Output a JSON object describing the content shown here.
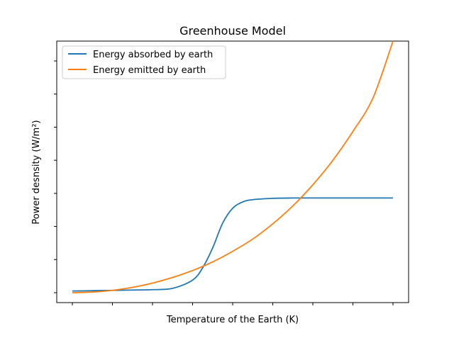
{
  "chart_data": {
    "type": "line",
    "title": "Greenhouse Model",
    "xlabel": "Temperature of the Earth (K)",
    "ylabel": "Power desnsity (W/m²)",
    "xlim": [
      0,
      8
    ],
    "ylim": [
      -0.3,
      7.6
    ],
    "x_ticks": [
      0,
      1,
      2,
      3,
      4,
      5,
      6,
      7,
      8
    ],
    "y_ticks": [
      0,
      1,
      2,
      3,
      4,
      5,
      6,
      7
    ],
    "tick_labels_shown": false,
    "grid": false,
    "legend": "top-left",
    "series": [
      {
        "name": "Energy absorbed by earth",
        "color": "#1f77b4",
        "x": [
          0,
          0.5,
          1,
          1.5,
          2,
          2.5,
          3,
          3.25,
          3.5,
          3.75,
          4,
          4.25,
          4.5,
          5,
          5.5,
          6,
          6.5,
          7,
          7.5,
          8
        ],
        "y": [
          0.05,
          0.06,
          0.07,
          0.08,
          0.09,
          0.13,
          0.38,
          0.75,
          1.35,
          2.1,
          2.55,
          2.74,
          2.81,
          2.85,
          2.86,
          2.86,
          2.86,
          2.86,
          2.86,
          2.86
        ]
      },
      {
        "name": "Energy emitted by earth",
        "color": "#ff7f0e",
        "x": [
          0,
          0.5,
          1,
          1.5,
          2,
          2.5,
          3,
          3.5,
          4,
          4.5,
          5,
          5.5,
          6,
          6.5,
          7,
          7.5,
          8
        ],
        "y": [
          0.0,
          0.02,
          0.07,
          0.16,
          0.29,
          0.46,
          0.67,
          0.93,
          1.25,
          1.62,
          2.08,
          2.62,
          3.26,
          4.0,
          4.87,
          5.88,
          7.6
        ]
      }
    ]
  }
}
